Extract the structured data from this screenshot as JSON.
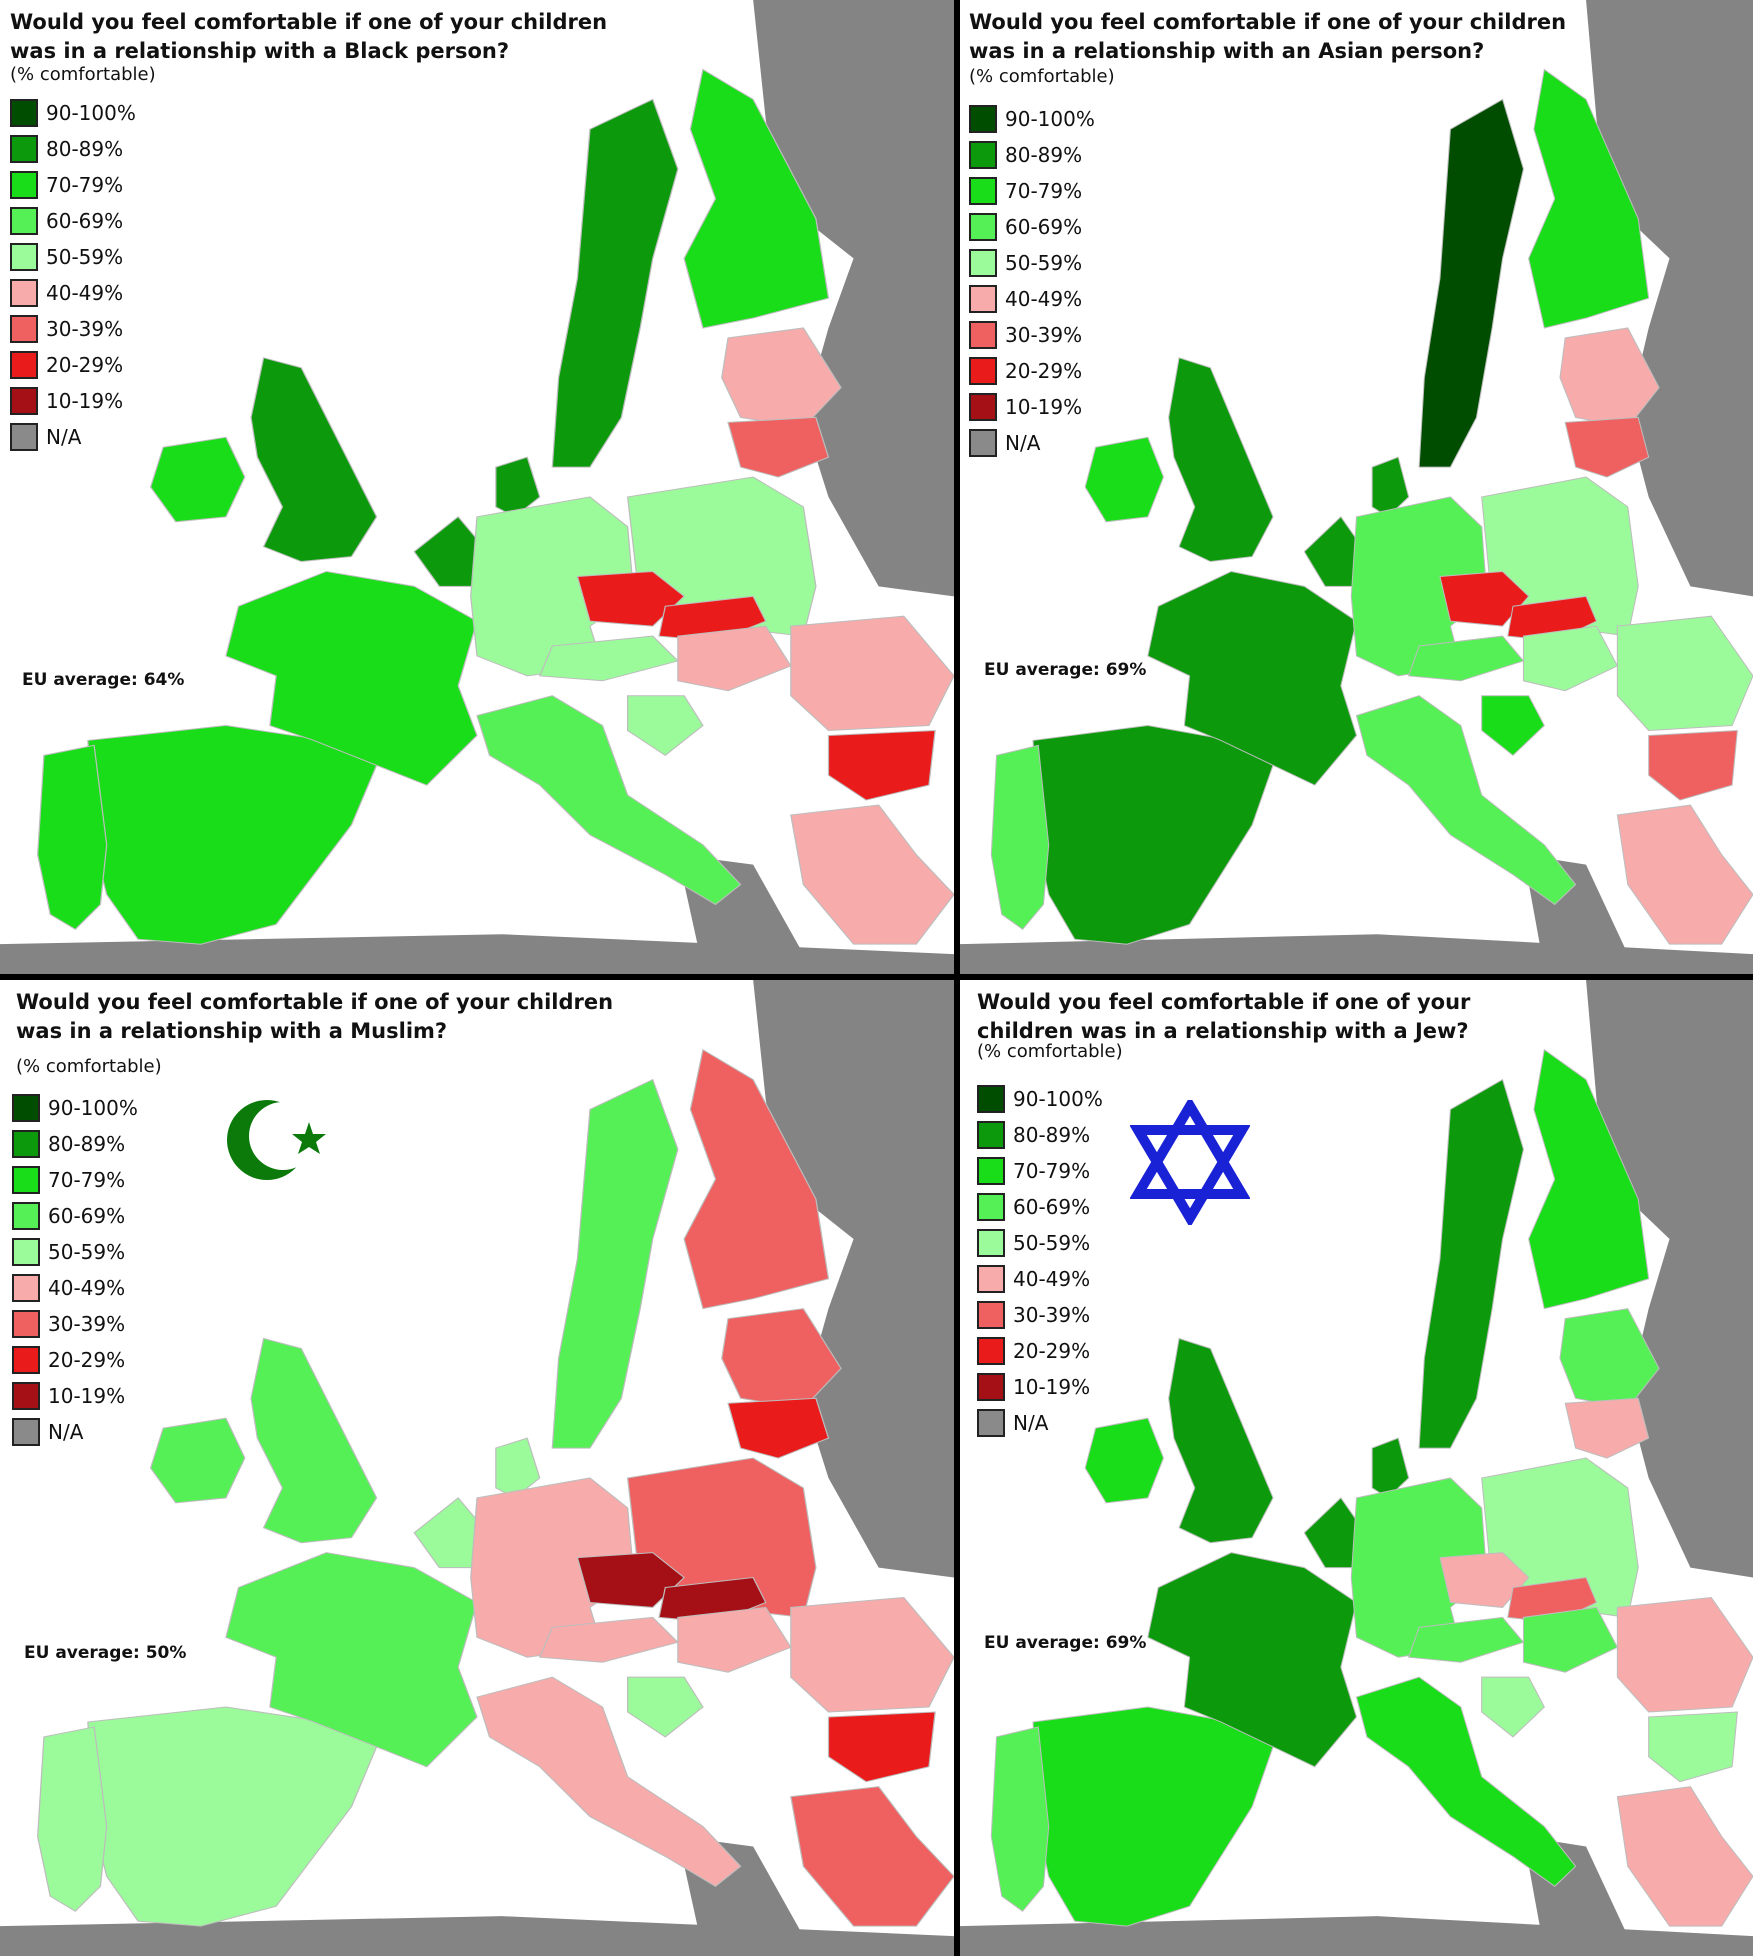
{
  "legend": {
    "items": [
      {
        "label": "90-100%",
        "color": "#004d00"
      },
      {
        "label": "80-89%",
        "color": "#0c9a0c"
      },
      {
        "label": "70-79%",
        "color": "#19dd19"
      },
      {
        "label": "60-69%",
        "color": "#55f055"
      },
      {
        "label": "50-59%",
        "color": "#9bfb9b"
      },
      {
        "label": "40-49%",
        "color": "#f7abab"
      },
      {
        "label": "30-39%",
        "color": "#ef6161"
      },
      {
        "label": "20-29%",
        "color": "#ea1b1b"
      },
      {
        "label": "10-19%",
        "color": "#a50f16"
      },
      {
        "label": "N/A",
        "color": "#8a8a8a"
      }
    ]
  },
  "colors": {
    "sea": "#ffffff",
    "land_na": "#848484",
    "border": "#bdbdbd"
  },
  "panels": [
    {
      "title_line1": "Would you feel comfortable if one of your children",
      "title_line2": "was in a relationship with a Black person?",
      "subtitle": "(% comfortable)",
      "eu_average": "EU average: 64%",
      "symbol": "",
      "country_levels": {
        "uk": "80-89%",
        "ireland": "70-79%",
        "france": "70-79%",
        "iberia_spain": "70-79%",
        "portugal": "70-79%",
        "benelux": "80-89%",
        "denmark": "80-89%",
        "germany": "50-59%",
        "poland": "50-59%",
        "sweden": "80-89%",
        "finland": "70-79%",
        "baltics": "40-49%",
        "lithuania": "30-39%",
        "czechia": "20-29%",
        "slovakia": "20-29%",
        "austria": "50-59%",
        "hungary": "40-49%",
        "romania": "40-49%",
        "bulgaria": "20-29%",
        "italy": "60-69%",
        "greece": "40-49%",
        "croatia": "50-59%",
        "cyprus": "30-39%"
      }
    },
    {
      "title_line1": "Would you feel comfortable if one of your children",
      "title_line2": "was in a relationship with an Asian person?",
      "subtitle": "(% comfortable)",
      "eu_average": "EU average: 69%",
      "symbol": "",
      "country_levels": {
        "uk": "80-89%",
        "ireland": "70-79%",
        "france": "80-89%",
        "iberia_spain": "80-89%",
        "portugal": "60-69%",
        "benelux": "80-89%",
        "denmark": "80-89%",
        "germany": "60-69%",
        "poland": "50-59%",
        "sweden": "90-100%",
        "finland": "70-79%",
        "baltics": "40-49%",
        "lithuania": "30-39%",
        "czechia": "20-29%",
        "slovakia": "20-29%",
        "austria": "60-69%",
        "hungary": "50-59%",
        "romania": "50-59%",
        "bulgaria": "30-39%",
        "italy": "60-69%",
        "greece": "40-49%",
        "croatia": "70-79%",
        "cyprus": "N/A"
      }
    },
    {
      "title_line1": "Would you feel comfortable if one of your children",
      "title_line2": "was in a relationship with a Muslim?",
      "subtitle": "(% comfortable)",
      "eu_average": "EU average: 50%",
      "symbol": "crescent-star",
      "country_levels": {
        "uk": "60-69%",
        "ireland": "60-69%",
        "france": "60-69%",
        "iberia_spain": "50-59%",
        "portugal": "50-59%",
        "benelux": "50-59%",
        "denmark": "50-59%",
        "germany": "40-49%",
        "poland": "30-39%",
        "sweden": "60-69%",
        "finland": "30-39%",
        "baltics": "30-39%",
        "lithuania": "20-29%",
        "czechia": "10-19%",
        "slovakia": "10-19%",
        "austria": "40-49%",
        "hungary": "40-49%",
        "romania": "40-49%",
        "bulgaria": "20-29%",
        "italy": "40-49%",
        "greece": "30-39%",
        "croatia": "50-59%",
        "cyprus": "20-29%"
      }
    },
    {
      "title_line1": "Would you feel comfortable if one of your",
      "title_line2": "children was in a relationship with a Jew?",
      "subtitle": "(% comfortable)",
      "eu_average": "EU average: 69%",
      "symbol": "star-of-david",
      "country_levels": {
        "uk": "80-89%",
        "ireland": "70-79%",
        "france": "80-89%",
        "iberia_spain": "70-79%",
        "portugal": "60-69%",
        "benelux": "80-89%",
        "denmark": "80-89%",
        "germany": "60-69%",
        "poland": "50-59%",
        "sweden": "80-89%",
        "finland": "70-79%",
        "baltics": "60-69%",
        "lithuania": "40-49%",
        "czechia": "40-49%",
        "slovakia": "30-39%",
        "austria": "60-69%",
        "hungary": "60-69%",
        "romania": "40-49%",
        "bulgaria": "50-59%",
        "italy": "70-79%",
        "greece": "40-49%",
        "croatia": "50-59%",
        "cyprus": "N/A"
      }
    }
  ]
}
